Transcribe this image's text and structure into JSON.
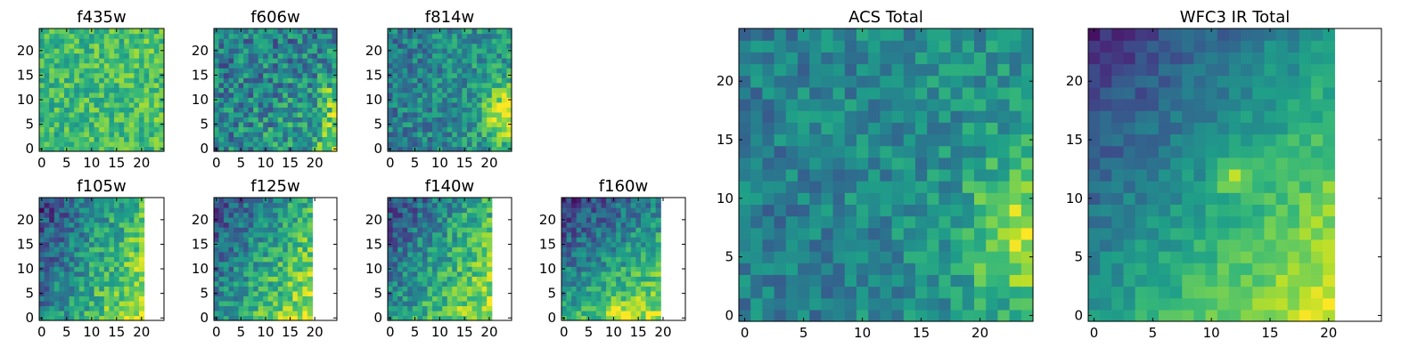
{
  "figure": {
    "colormap": "viridis",
    "background": "#ffffff"
  },
  "chart_data": [
    {
      "type": "heatmap",
      "title": "f435w",
      "grid_size": [
        25,
        25
      ],
      "data_cols": 25,
      "data_rows": 25,
      "xlim": [
        0,
        25
      ],
      "ylim": [
        0,
        25
      ],
      "xticks": [
        "0",
        "5",
        "10",
        "15",
        "20"
      ],
      "yticks": [
        "0",
        "5",
        "10",
        "15",
        "20"
      ],
      "color_profile": "uniform bright green-yellow noise",
      "grid": false,
      "legend": "none"
    },
    {
      "type": "heatmap",
      "title": "f606w",
      "grid_size": [
        25,
        25
      ],
      "data_cols": 25,
      "data_rows": 25,
      "xlim": [
        0,
        25
      ],
      "ylim": [
        0,
        25
      ],
      "xticks": [
        "0",
        "5",
        "10",
        "15",
        "20"
      ],
      "yticks": [
        "0",
        "5",
        "10",
        "15",
        "20"
      ],
      "color_profile": "noisy, brighter toward lower right",
      "grid": false,
      "legend": "none"
    },
    {
      "type": "heatmap",
      "title": "f814w",
      "grid_size": [
        25,
        25
      ],
      "data_cols": 25,
      "data_rows": 25,
      "xlim": [
        0,
        25
      ],
      "ylim": [
        0,
        25
      ],
      "xticks": [
        "0",
        "5",
        "10",
        "15",
        "20"
      ],
      "yticks": [
        "0",
        "5",
        "10",
        "15",
        "20"
      ],
      "color_profile": "teal, yellow bright region at lower right",
      "grid": false,
      "legend": "none"
    },
    {
      "type": "heatmap",
      "title": "f105w",
      "grid_size": [
        25,
        25
      ],
      "data_cols": 21,
      "data_rows": 25,
      "xlim": [
        0,
        25
      ],
      "ylim": [
        0,
        25
      ],
      "xticks": [
        "0",
        "5",
        "10",
        "15",
        "20"
      ],
      "yticks": [
        "0",
        "5",
        "10",
        "15",
        "20"
      ],
      "color_profile": "dark upper left, bright lower right",
      "grid": false,
      "legend": "none"
    },
    {
      "type": "heatmap",
      "title": "f125w",
      "grid_size": [
        25,
        25
      ],
      "data_cols": 20,
      "data_rows": 25,
      "xlim": [
        0,
        25
      ],
      "ylim": [
        0,
        25
      ],
      "xticks": [
        "0",
        "5",
        "10",
        "15",
        "20"
      ],
      "yticks": [
        "0",
        "5",
        "10",
        "15",
        "20"
      ],
      "color_profile": "dark upper left, bright lower right",
      "grid": false,
      "legend": "none"
    },
    {
      "type": "heatmap",
      "title": "f140w",
      "grid_size": [
        25,
        25
      ],
      "data_cols": 21,
      "data_rows": 25,
      "xlim": [
        0,
        25
      ],
      "ylim": [
        0,
        25
      ],
      "xticks": [
        "0",
        "5",
        "10",
        "15",
        "20"
      ],
      "yticks": [
        "0",
        "5",
        "10",
        "15",
        "20"
      ],
      "color_profile": "dark upper left, bright lower right",
      "grid": false,
      "legend": "none"
    },
    {
      "type": "heatmap",
      "title": "f160w",
      "grid_size": [
        25,
        25
      ],
      "data_cols": 20,
      "data_rows": 25,
      "xlim": [
        0,
        25
      ],
      "ylim": [
        0,
        25
      ],
      "xticks": [
        "0",
        "5",
        "10",
        "15",
        "20"
      ],
      "yticks": [
        "0",
        "5",
        "10",
        "15",
        "20"
      ],
      "color_profile": "dark upper left, bright bottom",
      "grid": false,
      "legend": "none"
    },
    {
      "type": "heatmap",
      "title": "ACS Total",
      "grid_size": [
        25,
        25
      ],
      "data_cols": 25,
      "data_rows": 25,
      "xlim": [
        0,
        25
      ],
      "ylim": [
        0,
        25
      ],
      "xticks": [
        "0",
        "5",
        "10",
        "15",
        "20"
      ],
      "yticks": [
        "0",
        "5",
        "10",
        "15",
        "20"
      ],
      "color_profile": "teal-green, yellow region lower right",
      "grid": false,
      "legend": "none"
    },
    {
      "type": "heatmap",
      "title": "WFC3 IR Total",
      "grid_size": [
        25,
        25
      ],
      "data_cols": 21,
      "data_rows": 25,
      "xlim": [
        0,
        25
      ],
      "ylim": [
        0,
        25
      ],
      "xticks": [
        "0",
        "5",
        "10",
        "15",
        "20"
      ],
      "yticks": [
        "0",
        "5",
        "10",
        "15",
        "20"
      ],
      "color_profile": "dark purple upper left, bright yellow lower right",
      "grid": false,
      "legend": "none"
    }
  ]
}
